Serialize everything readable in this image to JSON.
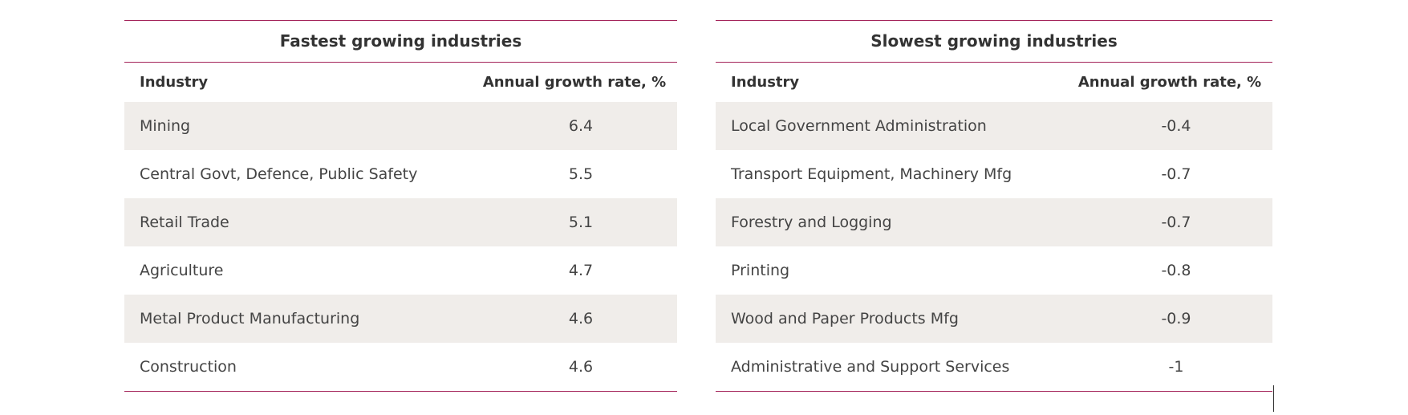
{
  "tables": [
    {
      "title": "Fastest growing industries",
      "columns": [
        "Industry",
        "Annual growth rate, %"
      ],
      "rows": [
        {
          "industry": "Mining",
          "rate": "6.4"
        },
        {
          "industry": "Central Govt, Defence, Public Safety",
          "rate": "5.5"
        },
        {
          "industry": "Retail Trade",
          "rate": "5.1"
        },
        {
          "industry": "Agriculture",
          "rate": "4.7"
        },
        {
          "industry": "Metal Product Manufacturing",
          "rate": "4.6"
        },
        {
          "industry": "Construction",
          "rate": "4.6"
        }
      ]
    },
    {
      "title": "Slowest growing industries",
      "columns": [
        "Industry",
        "Annual growth rate, %"
      ],
      "rows": [
        {
          "industry": "Local Government Administration",
          "rate": "-0.4"
        },
        {
          "industry": "Transport Equipment, Machinery Mfg",
          "rate": "-0.7"
        },
        {
          "industry": "Forestry and Logging",
          "rate": "-0.7"
        },
        {
          "industry": "Printing",
          "rate": "-0.8"
        },
        {
          "industry": "Wood and Paper Products Mfg",
          "rate": "-0.9"
        },
        {
          "industry": "Administrative and Support Services",
          "rate": "-1"
        }
      ]
    }
  ],
  "colors": {
    "rule": "#a4245a",
    "shaded_row": "#f0edea",
    "text": "#3a3a3a"
  }
}
